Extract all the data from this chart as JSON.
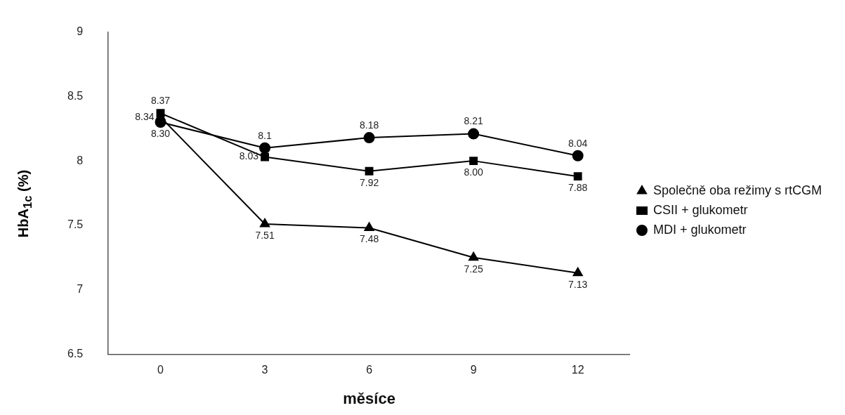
{
  "chart_data": {
    "type": "line",
    "xlabel": "měsíce",
    "ylabel": "HbA$_{1c}$ (%)",
    "categories": [
      "0",
      "3",
      "6",
      "9",
      "12"
    ],
    "ylim": [
      6.5,
      9
    ],
    "yticks": [
      6.5,
      7,
      7.5,
      8,
      8.5,
      9
    ],
    "grid": false,
    "legend": "right",
    "series": [
      {
        "name": "Společně oba režimy s rtCGM",
        "color": "#000000",
        "marker": "triangle",
        "values": [
          8.34,
          7.51,
          7.48,
          7.25,
          7.13
        ],
        "value_labels": [
          "8.34",
          "7.51",
          "7.48",
          "7.25",
          "7.13"
        ]
      },
      {
        "name": "CSII + glukometr",
        "color": "#000000",
        "marker": "square",
        "values": [
          8.37,
          8.03,
          7.92,
          8.0,
          7.88
        ],
        "value_labels": [
          "8.37",
          "8.03",
          "7.92",
          "8.00",
          "7.88"
        ]
      },
      {
        "name": "MDI + glukometr",
        "color": "#000000",
        "marker": "circle",
        "values": [
          8.3,
          8.1,
          8.18,
          8.21,
          8.04
        ],
        "value_labels": [
          "8.30",
          "8.1",
          "8.18",
          "8.21",
          "8.04"
        ]
      }
    ]
  }
}
